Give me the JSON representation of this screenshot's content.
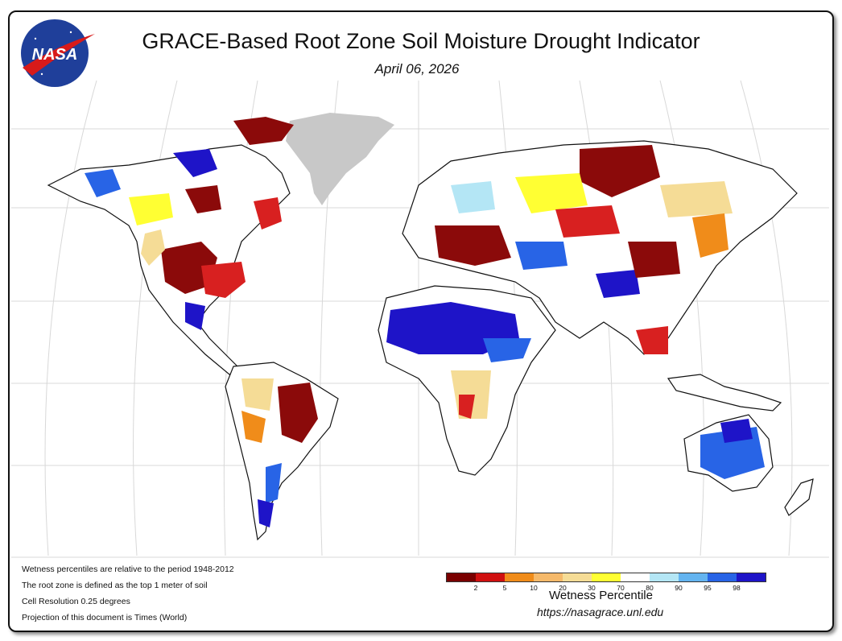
{
  "header": {
    "title": "GRACE-Based Root Zone Soil Moisture Drought Indicator",
    "date": "April 06, 2026",
    "logo_text": "NASA"
  },
  "notes": [
    "Wetness percentiles are relative to the period 1948-2012",
    "The root zone is defined as the top 1 meter of soil",
    "Cell Resolution 0.25 degrees",
    "Projection of this document is Times (World)"
  ],
  "legend": {
    "title": "Wetness Percentile",
    "ticks": [
      "2",
      "5",
      "10",
      "20",
      "30",
      "70",
      "80",
      "90",
      "95",
      "98"
    ],
    "colors": [
      "#7a0000",
      "#d01010",
      "#f08c1a",
      "#f5b96a",
      "#f5dc96",
      "#ffff33",
      "#ffffff",
      "#b4e6f5",
      "#64b4f0",
      "#2864e6",
      "#1e14c8"
    ]
  },
  "footer": {
    "url": "https://nasagrace.unl.edu"
  },
  "map": {
    "land_color": "#ffffff",
    "greenland_color": "#c8c8c8",
    "graticule_color": "#d8d8d8"
  }
}
